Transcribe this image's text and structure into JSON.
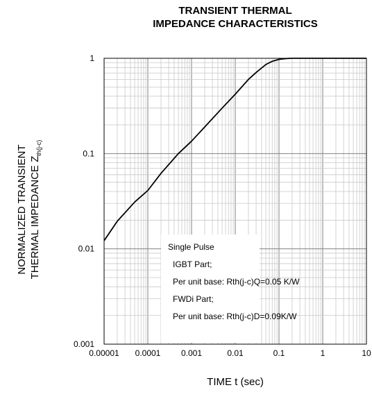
{
  "chart_data": {
    "type": "line",
    "title_lines": [
      "TRANSIENT THERMAL",
      "IMPEDANCE CHARACTERISTICS"
    ],
    "ylabel_lines": [
      "NORMALIZED TRANSIENT",
      "THERMAL IMPEDANCE Z"
    ],
    "ylabel_subscript": "th(j-c)",
    "xlabel": "TIME t (sec)",
    "x_scale": "log",
    "y_scale": "log",
    "xlim": [
      1e-05,
      10
    ],
    "ylim": [
      0.001,
      1
    ],
    "x_ticks": [
      {
        "value": 1e-05,
        "label": "0.00001"
      },
      {
        "value": 0.0001,
        "label": "0.0001"
      },
      {
        "value": 0.001,
        "label": "0.001"
      },
      {
        "value": 0.01,
        "label": "0.01"
      },
      {
        "value": 0.1,
        "label": "0.1"
      },
      {
        "value": 1,
        "label": "1"
      },
      {
        "value": 10,
        "label": "10"
      }
    ],
    "y_ticks": [
      {
        "value": 0.001,
        "label": "0.001"
      },
      {
        "value": 0.01,
        "label": "0.01"
      },
      {
        "value": 0.1,
        "label": "0.1"
      },
      {
        "value": 1,
        "label": "1"
      }
    ],
    "grid": true,
    "series": [
      {
        "color": "#000000",
        "x": [
          1e-05,
          2e-05,
          5e-05,
          0.0001,
          0.0002,
          0.0005,
          0.001,
          0.002,
          0.005,
          0.01,
          0.02,
          0.03,
          0.05,
          0.07,
          0.1,
          0.15,
          0.2,
          0.5,
          1,
          10
        ],
        "y": [
          0.0122,
          0.0195,
          0.031,
          0.041,
          0.062,
          0.1,
          0.135,
          0.19,
          0.3,
          0.42,
          0.6,
          0.71,
          0.86,
          0.93,
          0.975,
          0.995,
          1.0,
          1.0,
          1.0,
          1.0
        ]
      }
    ],
    "legend_location": "bottom-right",
    "legend_lines": [
      "Single Pulse",
      "IGBT Part;",
      "Per unit base: Rth(j-c)Q=0.05 K/W",
      "FWDi Part;",
      "Per unit base: Rth(j-c)D=0.09K/W"
    ]
  }
}
